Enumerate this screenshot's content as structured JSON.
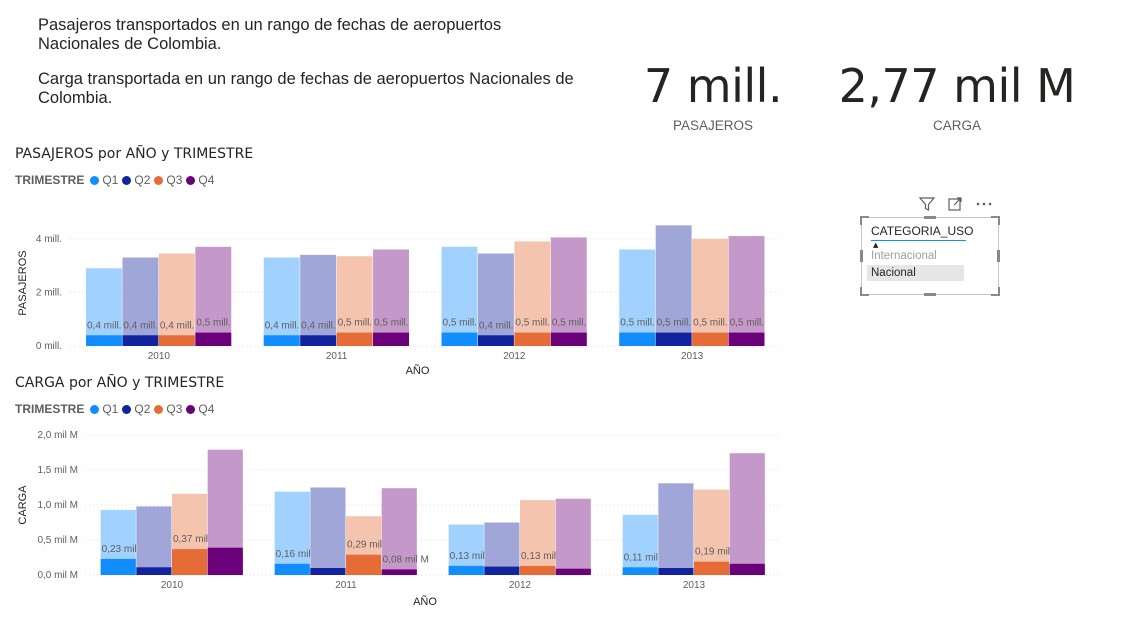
{
  "intro": {
    "line1": "Pasajeros transportados en un rango de fechas de aeropuertos Nacionales de Colombia.",
    "line2": "Carga transportada en un rango de fechas de aeropuertos Nacionales de Colombia."
  },
  "kpis": [
    {
      "value": "7 mill.",
      "label": "PASAJEROS"
    },
    {
      "value": "2,77 mil M",
      "label": "CARGA"
    }
  ],
  "slicer": {
    "field": "CATEGORIA_USO",
    "options": [
      "Internacional",
      "Nacional"
    ],
    "selected": "Nacional"
  },
  "colors": {
    "Q1": "#118dff",
    "Q2": "#12239e",
    "Q3": "#e66c37",
    "Q4": "#6b007b",
    "Q1_light": "#a0d1ff",
    "Q2_light": "#a0a7d8",
    "Q3_light": "#f5c4af",
    "Q4_light": "#c499ca"
  },
  "chart_data": [
    {
      "type": "bar",
      "title": "PASAJEROS por AÑO y TRIMESTRE",
      "legend_title": "TRIMESTRE",
      "legend_position": "top-left",
      "xlabel": "AÑO",
      "ylabel": "PASAJEROS",
      "categories": [
        "2010",
        "2011",
        "2012",
        "2013"
      ],
      "yticks": [
        0,
        2,
        4
      ],
      "ytick_labels": [
        "0 mill.",
        "2 mill.",
        "4 mill."
      ],
      "ylim": [
        0,
        4.7
      ],
      "unit": "mill.",
      "grid": true,
      "series": [
        {
          "name": "Q1",
          "total": [
            2.9,
            3.3,
            3.7,
            3.6
          ],
          "selected": [
            0.4,
            0.4,
            0.5,
            0.5
          ],
          "labels": [
            "0,4 mill.",
            "0,4 mill.",
            "0,5 mill.",
            "0,5 mill."
          ]
        },
        {
          "name": "Q2",
          "total": [
            3.3,
            3.4,
            3.45,
            4.5
          ],
          "selected": [
            0.4,
            0.4,
            0.4,
            0.5
          ],
          "labels": [
            "0,4 mill.",
            "0,4 mill.",
            "0,4 mill.",
            "0,5 mill."
          ]
        },
        {
          "name": "Q3",
          "total": [
            3.45,
            3.35,
            3.9,
            4.0
          ],
          "selected": [
            0.4,
            0.5,
            0.5,
            0.5
          ],
          "labels": [
            "0,4 mill.",
            "0,5 mill.",
            "0,5 mill.",
            "0,5 mill."
          ]
        },
        {
          "name": "Q4",
          "total": [
            3.7,
            3.6,
            4.05,
            4.1
          ],
          "selected": [
            0.5,
            0.5,
            0.5,
            0.5
          ],
          "labels": [
            "0,5 mill.",
            "0,5 mill.",
            "0,5 mill.",
            "0,5 mill."
          ]
        }
      ]
    },
    {
      "type": "bar",
      "title": "CARGA por AÑO y TRIMESTRE",
      "legend_title": "TRIMESTRE",
      "legend_position": "top-left",
      "xlabel": "AÑO",
      "ylabel": "CARGA",
      "categories": [
        "2010",
        "2011",
        "2012",
        "2013"
      ],
      "yticks": [
        0,
        0.5,
        1.0,
        1.5,
        2.0
      ],
      "ytick_labels": [
        "0,0 mil M",
        "0,5 mil M",
        "1,0 mil M",
        "1,5 mil M",
        "2,0 mil M"
      ],
      "ylim": [
        0,
        2.0
      ],
      "unit": "mil M",
      "grid": true,
      "series": [
        {
          "name": "Q1",
          "total": [
            0.93,
            1.19,
            0.72,
            0.86
          ],
          "selected": [
            0.23,
            0.16,
            0.13,
            0.11
          ],
          "labels": [
            "0,23 mil M",
            "0,16 mil M",
            "0,13 mil M",
            "0,11 mil M"
          ]
        },
        {
          "name": "Q2",
          "total": [
            0.98,
            1.25,
            0.75,
            1.31
          ],
          "selected": [
            0.11,
            0.1,
            0.12,
            0.1
          ],
          "labels": [
            "",
            "",
            "",
            ""
          ]
        },
        {
          "name": "Q3",
          "total": [
            1.16,
            0.84,
            1.07,
            1.22
          ],
          "selected": [
            0.37,
            0.29,
            0.13,
            0.19
          ],
          "labels": [
            "0,37 mil M",
            "0,29 mil M",
            "0,13 mil M",
            "0,19 mil M"
          ]
        },
        {
          "name": "Q4",
          "total": [
            1.79,
            1.24,
            1.09,
            1.74
          ],
          "selected": [
            0.39,
            0.08,
            0.09,
            0.16
          ],
          "labels": [
            "",
            "0,08 mil M",
            "",
            ""
          ]
        }
      ]
    }
  ]
}
